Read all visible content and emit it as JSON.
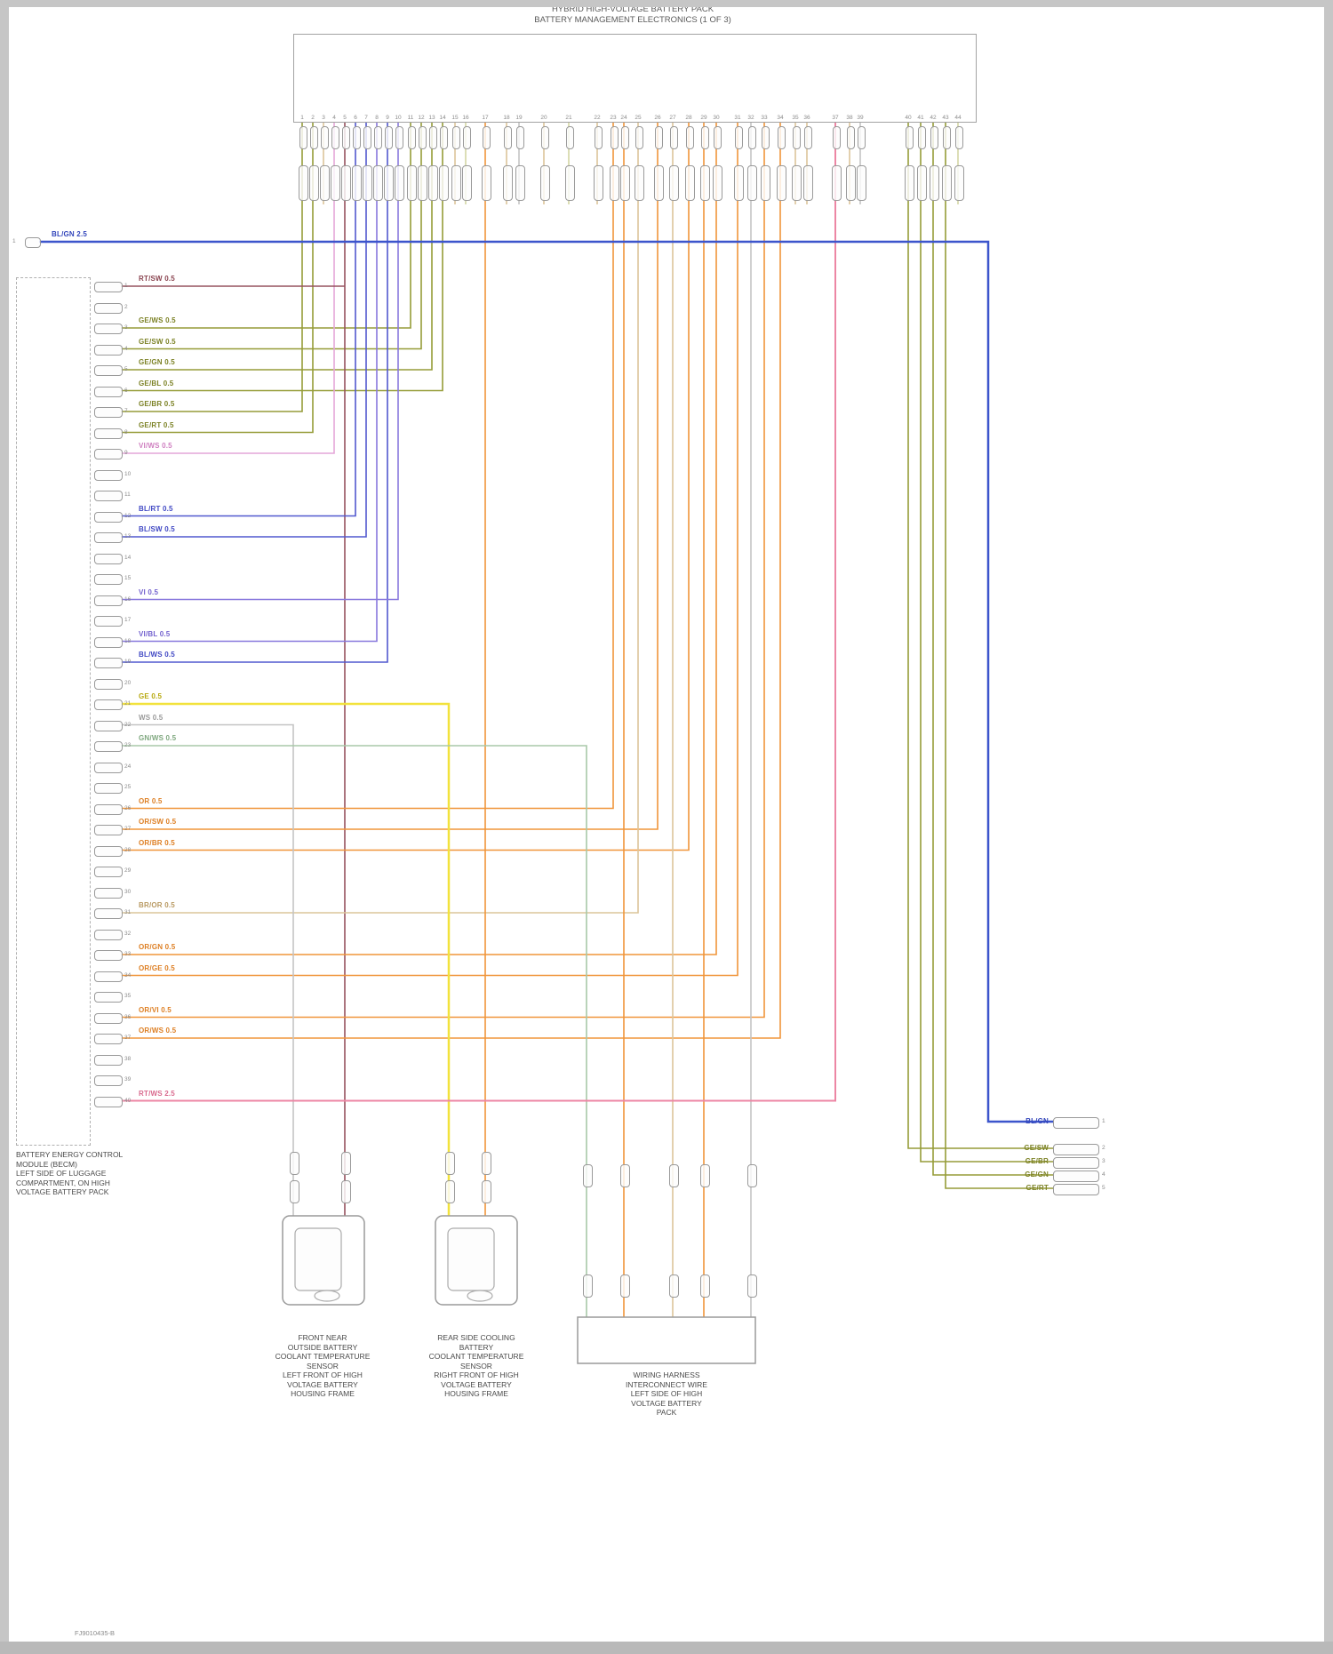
{
  "header": {
    "title_line1": "HYBRID HIGH-VOLTAGE BATTERY PACK",
    "title_line2": "BATTERY MANAGEMENT ELECTRONICS (1 OF 3)"
  },
  "palette": {
    "olive": "#969c38",
    "blue": "#5158cf",
    "violet": "#8878dd",
    "pink": "#e4a6d8",
    "maroon": "#96525e",
    "orange": "#f0953a",
    "yellow": "#f2e23c",
    "tan": "#dcc59a",
    "khaki": "#d3d6a4",
    "gray": "#c4c4c4",
    "green": "#a8c8a8",
    "crimson": "#ec86a4",
    "main_blue": "#3c55cc"
  },
  "top_module": {
    "pins": [
      "1",
      "2",
      "3",
      "4",
      "5",
      "6",
      "7",
      "8",
      "9",
      "10",
      "11",
      "12",
      "13",
      "14",
      "15",
      "16",
      "17",
      "18",
      "19",
      "20",
      "21",
      "22",
      "23",
      "24",
      "25",
      "26",
      "27",
      "28",
      "29",
      "30",
      "31",
      "32",
      "33",
      "34",
      "35",
      "36",
      "37",
      "38",
      "39",
      "40",
      "41",
      "42",
      "43",
      "44"
    ]
  },
  "main_bus": {
    "pin": "1",
    "label": "BL/GN 2.5"
  },
  "left_module": {
    "caption_lines": [
      "BATTERY ENERGY CONTROL",
      "MODULE (BECM)",
      "LEFT SIDE OF LUGGAGE",
      "COMPARTMENT, ON HIGH",
      "VOLTAGE BATTERY PACK"
    ],
    "pins": [
      {
        "num": "1",
        "code": "RT/SW 0.5",
        "color": "#8a4450"
      },
      {
        "num": "2",
        "code": "",
        "color": ""
      },
      {
        "num": "3",
        "code": "GE/WS 0.5",
        "color": "#7c8226"
      },
      {
        "num": "4",
        "code": "GE/SW 0.5",
        "color": "#7c8226"
      },
      {
        "num": "5",
        "code": "GE/GN 0.5",
        "color": "#7c8226"
      },
      {
        "num": "6",
        "code": "GE/BL 0.5",
        "color": "#7c8226"
      },
      {
        "num": "7",
        "code": "GE/BR 0.5",
        "color": "#7c8226"
      },
      {
        "num": "8",
        "code": "GE/RT 0.5",
        "color": "#7c8226"
      },
      {
        "num": "9",
        "code": "VI/WS 0.5",
        "color": "#cf7fc0"
      },
      {
        "num": "10",
        "code": "",
        "color": ""
      },
      {
        "num": "11",
        "code": "",
        "color": ""
      },
      {
        "num": "12",
        "code": "BL/RT 0.5",
        "color": "#4149c4"
      },
      {
        "num": "13",
        "code": "BL/SW 0.5",
        "color": "#4149c4"
      },
      {
        "num": "14",
        "code": "",
        "color": ""
      },
      {
        "num": "15",
        "code": "",
        "color": ""
      },
      {
        "num": "16",
        "code": "VI 0.5",
        "color": "#7463cf"
      },
      {
        "num": "17",
        "code": "",
        "color": ""
      },
      {
        "num": "18",
        "code": "VI/BL 0.5",
        "color": "#7463cf"
      },
      {
        "num": "19",
        "code": "BL/WS 0.5",
        "color": "#4149c4"
      },
      {
        "num": "20",
        "code": "",
        "color": ""
      },
      {
        "num": "21",
        "code": "GE 0.5",
        "color": "#b7a80e"
      },
      {
        "num": "22",
        "code": "WS 0.5",
        "color": "#9a9a9a"
      },
      {
        "num": "23",
        "code": "GN/WS 0.5",
        "color": "#7fa87f"
      },
      {
        "num": "24",
        "code": "",
        "color": ""
      },
      {
        "num": "25",
        "code": "",
        "color": ""
      },
      {
        "num": "26",
        "code": "OR 0.5",
        "color": "#dd7e22"
      },
      {
        "num": "27",
        "code": "OR/SW 0.5",
        "color": "#dd7e22"
      },
      {
        "num": "28",
        "code": "OR/BR 0.5",
        "color": "#dd7e22"
      },
      {
        "num": "29",
        "code": "",
        "color": ""
      },
      {
        "num": "30",
        "code": "",
        "color": ""
      },
      {
        "num": "31",
        "code": "BR/OR 0.5",
        "color": "#b99a63"
      },
      {
        "num": "32",
        "code": "",
        "color": ""
      },
      {
        "num": "33",
        "code": "OR/GN 0.5",
        "color": "#dd7e22"
      },
      {
        "num": "34",
        "code": "OR/GE 0.5",
        "color": "#dd7e22"
      },
      {
        "num": "35",
        "code": "",
        "color": ""
      },
      {
        "num": "36",
        "code": "OR/VI 0.5",
        "color": "#dd7e22"
      },
      {
        "num": "37",
        "code": "OR/WS 0.5",
        "color": "#dd7e22"
      },
      {
        "num": "38",
        "code": "",
        "color": ""
      },
      {
        "num": "39",
        "code": "",
        "color": ""
      },
      {
        "num": "40",
        "code": "RT/WS 2.5",
        "color": "#d96a8e"
      }
    ]
  },
  "right_pins": [
    {
      "code": "BL/GN",
      "num": "1",
      "color": "#3346bb"
    },
    {
      "code": "GE/SW",
      "num": "2",
      "color": "#7c8226"
    },
    {
      "code": "GE/BR",
      "num": "3",
      "color": "#7c8226"
    },
    {
      "code": "GE/GN",
      "num": "4",
      "color": "#7c8226"
    },
    {
      "code": "GE/RT",
      "num": "5",
      "color": "#7c8226"
    }
  ],
  "components": [
    {
      "caption_lines": [
        "FRONT NEAR",
        "OUTSIDE BATTERY",
        "COOLANT TEMPERATURE",
        "SENSOR",
        "LEFT FRONT OF HIGH",
        "VOLTAGE BATTERY",
        "HOUSING FRAME"
      ]
    },
    {
      "caption_lines": [
        "REAR SIDE COOLING",
        "BATTERY",
        "COOLANT TEMPERATURE",
        "SENSOR",
        "RIGHT FRONT OF HIGH",
        "VOLTAGE BATTERY",
        "HOUSING FRAME"
      ]
    },
    {
      "caption_lines": [
        "WIRING HARNESS",
        "INTERCONNECT WIRE",
        "LEFT SIDE OF HIGH",
        "VOLTAGE BATTERY",
        "PACK"
      ]
    }
  ],
  "footer": {
    "doc_id": "FJ9010435-B"
  }
}
